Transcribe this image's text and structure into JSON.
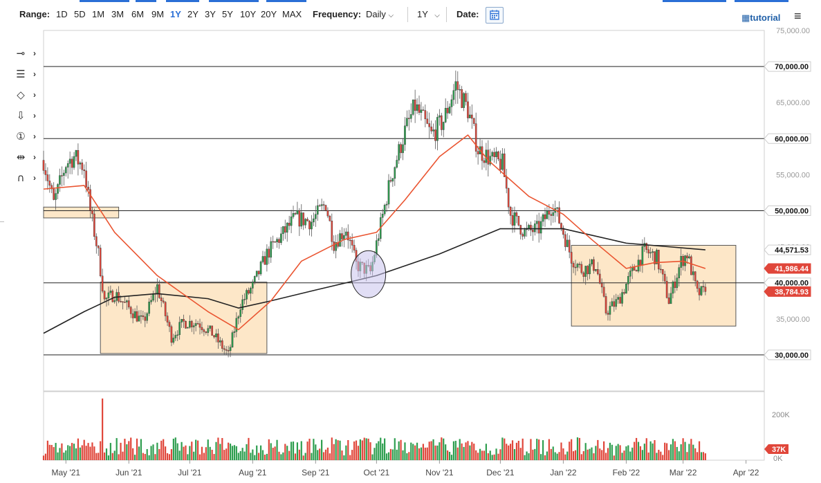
{
  "toolbar": {
    "range_label": "Range:",
    "ranges": [
      "1D",
      "5D",
      "1M",
      "3M",
      "6M",
      "9M",
      "1Y",
      "2Y",
      "3Y",
      "5Y",
      "10Y",
      "20Y",
      "MAX"
    ],
    "selected_range": "1Y",
    "frequency_label": "Frequency:",
    "frequency_value": "Daily",
    "period_value": "1Y",
    "date_label": "Date:",
    "tutorial_label": "tutorial"
  },
  "tools": [
    {
      "icon": "crosshair-icon",
      "glyph": "⊸"
    },
    {
      "icon": "fibonacci-icon",
      "glyph": "☰"
    },
    {
      "icon": "shape-icon",
      "glyph": "◇"
    },
    {
      "icon": "arrow-down-icon",
      "glyph": "⇩"
    },
    {
      "icon": "annotation-number-icon",
      "glyph": "①"
    },
    {
      "icon": "measure-icon",
      "glyph": "⇹"
    },
    {
      "icon": "magnet-icon",
      "glyph": "∩"
    }
  ],
  "colors": {
    "up": "#2e9e4f",
    "down": "#e0463a",
    "ma_short": "#ea5430",
    "ma_long": "#222222",
    "box_fill": "#fde7c8",
    "box_stroke": "#555555",
    "circle_fill": "#c8c2ec",
    "accent": "#2a6fd6"
  },
  "chart_data": {
    "type": "candlestick",
    "y_axis": {
      "ticks": [
        "75,000.00",
        "70,000.00",
        "65,000.00",
        "60,000.00",
        "55,000.00",
        "50,000.00",
        "45,000.00",
        "40,000.00",
        "35,000.00",
        "30,000.00"
      ],
      "ylim": [
        25000,
        75000
      ]
    },
    "x_axis": {
      "ticks": [
        "May '21",
        "Jun '21",
        "Jul '21",
        "Aug '21",
        "Sep '21",
        "Oct '21",
        "Nov '21",
        "Dec '21",
        "Jan '22",
        "Feb '22",
        "Mar '22",
        "Apr '22"
      ],
      "range": [
        "2021-04-20",
        "2022-04-10"
      ]
    },
    "horizontal_lines": [
      70000,
      60000,
      50000,
      40000,
      30000
    ],
    "price_labels": [
      {
        "text": "70,000.00",
        "value": 70000,
        "kind": "level"
      },
      {
        "text": "60,000.00",
        "value": 60000,
        "kind": "level"
      },
      {
        "text": "50,000.00",
        "value": 50000,
        "kind": "level"
      },
      {
        "text": "44,571.53",
        "value": 44571.53,
        "kind": "long-ma"
      },
      {
        "text": "41,986.44",
        "value": 41986.44,
        "kind": "short-ma"
      },
      {
        "text": "40,000.00",
        "value": 40000,
        "kind": "level"
      },
      {
        "text": "38,784.93",
        "value": 38784.93,
        "kind": "last"
      },
      {
        "text": "30,000.00",
        "value": 30000,
        "kind": "level"
      }
    ],
    "boxes": [
      {
        "x0": "2021-04-20",
        "x1": "2021-05-27",
        "y0": 49000,
        "y1": 50500
      },
      {
        "x0": "2021-05-18",
        "x1": "2021-08-08",
        "y0": 30200,
        "y1": 40100
      },
      {
        "x0": "2022-01-05",
        "x1": "2022-03-27",
        "y0": 34000,
        "y1": 45200
      }
    ],
    "circle": {
      "center": "2021-09-27",
      "value": 41200
    },
    "price_path": [
      [
        "2021-04-20",
        57000
      ],
      [
        "2021-04-25",
        51000
      ],
      [
        "2021-05-01",
        56500
      ],
      [
        "2021-05-05",
        57500
      ],
      [
        "2021-05-10",
        56000
      ],
      [
        "2021-05-13",
        50000
      ],
      [
        "2021-05-17",
        44000
      ],
      [
        "2021-05-20",
        37500
      ],
      [
        "2021-05-25",
        38500
      ],
      [
        "2021-06-01",
        36500
      ],
      [
        "2021-06-08",
        34500
      ],
      [
        "2021-06-15",
        39500
      ],
      [
        "2021-06-22",
        32500
      ],
      [
        "2021-06-28",
        34500
      ],
      [
        "2021-07-05",
        34500
      ],
      [
        "2021-07-12",
        33000
      ],
      [
        "2021-07-20",
        30000
      ],
      [
        "2021-07-26",
        37000
      ],
      [
        "2021-08-01",
        39500
      ],
      [
        "2021-08-08",
        44000
      ],
      [
        "2021-08-15",
        46500
      ],
      [
        "2021-08-22",
        49000
      ],
      [
        "2021-08-30",
        48500
      ],
      [
        "2021-09-06",
        51000
      ],
      [
        "2021-09-10",
        45500
      ],
      [
        "2021-09-16",
        47500
      ],
      [
        "2021-09-21",
        42500
      ],
      [
        "2021-09-28",
        41500
      ],
      [
        "2021-10-03",
        48000
      ],
      [
        "2021-10-08",
        54500
      ],
      [
        "2021-10-15",
        61000
      ],
      [
        "2021-10-20",
        64500
      ],
      [
        "2021-10-28",
        60500
      ],
      [
        "2021-11-03",
        62500
      ],
      [
        "2021-11-09",
        67500
      ],
      [
        "2021-11-15",
        64000
      ],
      [
        "2021-11-20",
        58500
      ],
      [
        "2021-11-27",
        57000
      ],
      [
        "2021-12-02",
        56500
      ],
      [
        "2021-12-06",
        49500
      ],
      [
        "2021-12-13",
        47000
      ],
      [
        "2021-12-20",
        47500
      ],
      [
        "2021-12-27",
        51000
      ],
      [
        "2022-01-01",
        47000
      ],
      [
        "2022-01-05",
        43500
      ],
      [
        "2022-01-10",
        41800
      ],
      [
        "2022-01-17",
        42500
      ],
      [
        "2022-01-22",
        36000
      ],
      [
        "2022-01-28",
        37500
      ],
      [
        "2022-02-04",
        41500
      ],
      [
        "2022-02-10",
        44500
      ],
      [
        "2022-02-16",
        43500
      ],
      [
        "2022-02-22",
        37500
      ],
      [
        "2022-02-28",
        43000
      ],
      [
        "2022-03-03",
        44000
      ],
      [
        "2022-03-08",
        38500
      ],
      [
        "2022-03-12",
        38784.93
      ]
    ],
    "ma_short": [
      [
        "2021-04-20",
        53000
      ],
      [
        "2021-05-10",
        53500
      ],
      [
        "2021-05-25",
        47000
      ],
      [
        "2021-06-15",
        41000
      ],
      [
        "2021-07-10",
        36000
      ],
      [
        "2021-07-25",
        33500
      ],
      [
        "2021-08-10",
        37500
      ],
      [
        "2021-08-25",
        43000
      ],
      [
        "2021-09-15",
        46000
      ],
      [
        "2021-10-01",
        47000
      ],
      [
        "2021-10-15",
        51500
      ],
      [
        "2021-11-01",
        57500
      ],
      [
        "2021-11-15",
        60500
      ],
      [
        "2021-11-25",
        57000
      ],
      [
        "2021-12-15",
        52000
      ],
      [
        "2022-01-01",
        49500
      ],
      [
        "2022-01-15",
        46000
      ],
      [
        "2022-02-01",
        42000
      ],
      [
        "2022-02-15",
        42800
      ],
      [
        "2022-03-01",
        43000
      ],
      [
        "2022-03-12",
        41986.44
      ]
    ],
    "ma_long": [
      [
        "2021-04-20",
        33000
      ],
      [
        "2021-05-10",
        36000
      ],
      [
        "2021-05-25",
        38000
      ],
      [
        "2021-06-15",
        38500
      ],
      [
        "2021-07-10",
        37800
      ],
      [
        "2021-07-25",
        36500
      ],
      [
        "2021-08-10",
        37500
      ],
      [
        "2021-09-01",
        39000
      ],
      [
        "2021-10-01",
        41000
      ],
      [
        "2021-11-01",
        44000
      ],
      [
        "2021-12-01",
        47500
      ],
      [
        "2022-01-01",
        47500
      ],
      [
        "2022-02-01",
        45500
      ],
      [
        "2022-03-12",
        44571.53
      ]
    ],
    "volume": {
      "axis_ticks": [
        "200K",
        "0K"
      ],
      "last_label": "37K",
      "peak": {
        "date": "2021-05-19",
        "value": 270000
      },
      "typical_range": [
        20000,
        100000
      ]
    }
  }
}
